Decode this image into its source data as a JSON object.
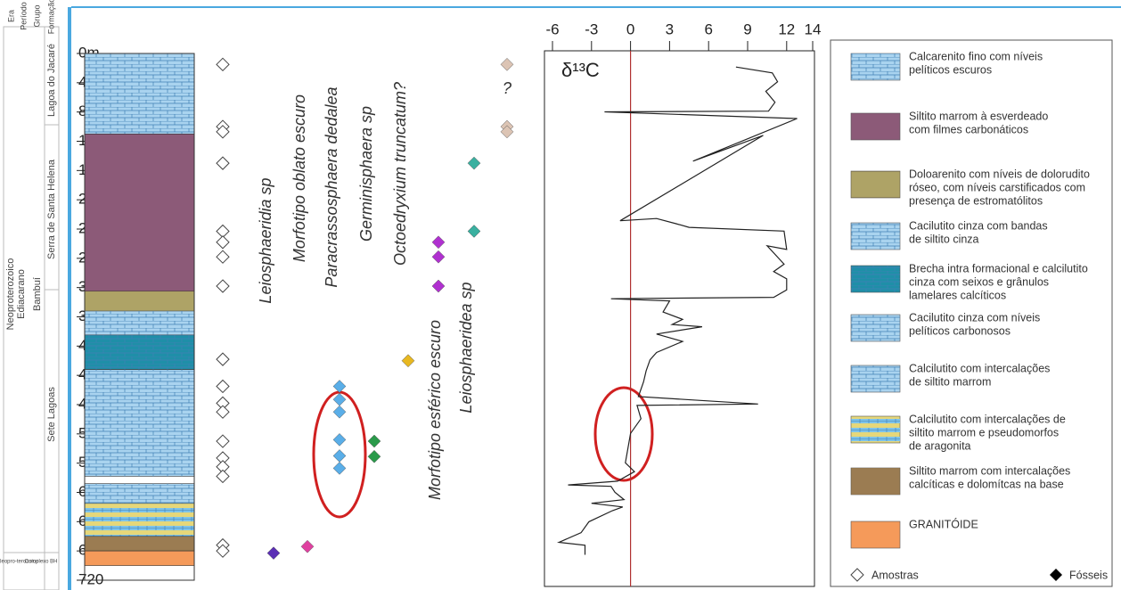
{
  "stratigraphy": {
    "headers": [
      "Era",
      "Período",
      "Grupo",
      "Formação"
    ],
    "era": "Neoproterozoico",
    "period": "Ediacarano",
    "group": "Bambuí",
    "formations": [
      "Lagoa do Jacaré",
      "Serra de Santa Helena",
      "Sete Lagoas"
    ],
    "base": [
      "Paleopro-terozoico",
      "Complexo BH"
    ]
  },
  "chart_data": [
    {
      "type": "strat",
      "ylim": [
        0,
        720
      ],
      "yticks": [
        {
          "value": 0,
          "label": "0m"
        },
        40,
        80,
        120,
        160,
        200,
        240,
        280,
        320,
        360,
        400,
        440,
        480,
        520,
        560,
        600,
        640,
        680,
        720
      ],
      "layers": [
        {
          "top": 0,
          "bottom": 110,
          "color": "#a9d3ef",
          "pattern": "brick"
        },
        {
          "top": 110,
          "bottom": 325,
          "color": "#8c5a78",
          "pattern": "none"
        },
        {
          "top": 325,
          "bottom": 352,
          "color": "#d6cf8a",
          "pattern": "hatch"
        },
        {
          "top": 352,
          "bottom": 385,
          "color": "#a9d3ef",
          "pattern": "brick"
        },
        {
          "top": 385,
          "bottom": 432,
          "color": "#1f8fa8",
          "pattern": "brick"
        },
        {
          "top": 432,
          "bottom": 578,
          "color": "#a9d3ef",
          "pattern": "brick"
        },
        {
          "top": 588,
          "bottom": 615,
          "color": "#a9d3ef",
          "pattern": "brick"
        },
        {
          "top": 615,
          "bottom": 660,
          "color": "#e6d77a",
          "pattern": "band"
        },
        {
          "top": 660,
          "bottom": 680,
          "color": "#b8906a",
          "pattern": "hatch"
        },
        {
          "top": 680,
          "bottom": 700,
          "color": "#f59a5a",
          "pattern": "none"
        }
      ],
      "samples": [
        15,
        100,
        107,
        150,
        243,
        258,
        278,
        318,
        418,
        455,
        478,
        490,
        530,
        553,
        565,
        578,
        672,
        680
      ],
      "fossils": [
        {
          "name": "Leiosphaeridia sp",
          "color": "#5b2fb5",
          "depths": [
            683
          ]
        },
        {
          "name": "Morfotipo oblato escuro",
          "color": "#e040a0",
          "depths": [
            674
          ]
        },
        {
          "name": "Paracrassosphaera dedalea",
          "color": "#5aaee8",
          "depths": [
            455,
            473,
            490,
            528,
            550,
            567
          ]
        },
        {
          "name": "Germinisphaera sp",
          "color": "#2a9a4a",
          "depths": [
            530,
            551
          ]
        },
        {
          "name": "Octoedryxium truncatum?",
          "color": "#e8b820",
          "depths": [
            420
          ]
        },
        {
          "name": "Morfotipo esférico escuro",
          "color": "#b030d0",
          "depths": [
            258,
            278,
            318
          ]
        },
        {
          "name": "Leiosphaeridea sp",
          "color": "#3ab0a0",
          "depths": [
            150,
            243
          ]
        },
        {
          "label": "?",
          "color": "#dcc4b4",
          "depths": [
            15,
            100,
            107
          ]
        }
      ]
    },
    {
      "type": "line",
      "title": "δ¹³C",
      "xlim": [
        -6,
        14
      ],
      "xticks": [
        -6,
        -3,
        0,
        3,
        6,
        9,
        12,
        14
      ],
      "ylim": [
        0,
        728
      ],
      "color": "#222",
      "zero_color": "#b03030",
      "values": [
        8.1,
        10.9,
        11.3,
        10.4,
        11.1,
        10.6,
        -2.0,
        12.8,
        4.8,
        10.2,
        -0.8,
        2.0,
        3.5,
        4.5,
        11.8,
        12.0,
        10.5,
        11.8,
        11.0,
        12.0,
        12.0,
        11.0,
        -1.5,
        3.0,
        2.5,
        4.0,
        3.2,
        5.5,
        2.0,
        4.0,
        2.0,
        1.5,
        1.2,
        1.0,
        0.6,
        9.8,
        0.5,
        0.8,
        0.0,
        -0.2,
        -0.4,
        0.3,
        -1.0,
        -4.8,
        -1.5,
        -1.2,
        -0.5,
        -3.0,
        -0.6,
        -1.4,
        -3.2,
        -3.8,
        -5.5,
        -3.5,
        -3.5
      ],
      "depths": [
        22,
        30,
        42,
        55,
        70,
        82,
        83,
        92,
        150,
        115,
        231,
        228,
        235,
        240,
        245,
        270,
        265,
        290,
        300,
        310,
        325,
        335,
        337,
        340,
        355,
        365,
        372,
        375,
        385,
        395,
        410,
        420,
        435,
        450,
        470,
        480,
        482,
        500,
        520,
        540,
        560,
        572,
        585,
        590,
        592,
        600,
        610,
        615,
        620,
        625,
        640,
        655,
        668,
        672,
        685
      ]
    }
  ],
  "legend": {
    "items": [
      {
        "text": [
          "Calcarenito fino com níveis",
          "pelíticos escuros"
        ],
        "color": "#a9d3ef",
        "pattern": "brick"
      },
      {
        "text": [
          "Siltito marrom à esverdeado",
          "com filmes carbonáticos"
        ],
        "color": "#8c5a78",
        "pattern": "none"
      },
      {
        "text": [
          "Doloarenito com níveis de dolorudito",
          " róseo, com níveis carstificados com",
          "presença de estromatólitos"
        ],
        "color": "#d6cf8a",
        "pattern": "hatch"
      },
      {
        "text": [
          "Cacilutito cinza com bandas",
          "de siltito cinza"
        ],
        "color": "#a9d3ef",
        "pattern": "brick"
      },
      {
        "text": [
          "Brecha intra formacional e calcilutito",
          "cinza com seixos e grânulos",
          "lamelares calcíticos"
        ],
        "color": "#1f8fa8",
        "pattern": "brick"
      },
      {
        "text": [
          "Cacilutito cinza com níveis",
          "pelíticos carbonosos"
        ],
        "color": "#a9d3ef",
        "pattern": "brick"
      },
      {
        "text": [
          "Calcilutito com intercalações",
          "de siltito marrom"
        ],
        "color": "#a9d3ef",
        "pattern": "brick"
      },
      {
        "text": [
          "Calcilutito com intercalações de",
          "siltito marrom e pseudomorfos",
          "de aragonita"
        ],
        "color": "#e6d77a",
        "pattern": "band"
      },
      {
        "text": [
          "Siltito marrom com intercalações",
          "calcíticas e dolomítcas na base"
        ],
        "color": "#b8906a",
        "pattern": "hatch"
      },
      {
        "text": [
          "GRANITÓIDE"
        ],
        "color": "#f59a5a",
        "pattern": "none"
      }
    ],
    "samples_label": "Amostras",
    "fossils_label": "Fósseis"
  }
}
